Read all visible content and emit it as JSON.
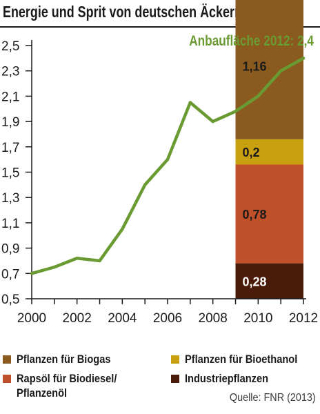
{
  "title": "Energie und Sprit von deutschen Äckern",
  "source": "Quelle: FNR (2013)",
  "colors": {
    "line": "#6a9a32",
    "biogas": "#8b5a1e",
    "bioethanol": "#c8a010",
    "biodiesel": "#c0502a",
    "industrie": "#4a1a0a",
    "text": "#1a1a1a"
  },
  "legend": [
    {
      "label": "Pflanzen für Biogas",
      "color_key": "biogas"
    },
    {
      "label": "Pflanzen für Bioethanol",
      "color_key": "bioethanol"
    },
    {
      "label": "Rapsöl für Biodiesel/\nPflanzenöl",
      "color_key": "biodiesel"
    },
    {
      "label": "Industriepflanzen",
      "color_key": "industrie"
    }
  ],
  "chart_data": {
    "type": "line",
    "title": "Energie und Sprit von deutschen Äckern",
    "xlabel": "",
    "ylabel": "",
    "x": [
      2000,
      2001,
      2002,
      2003,
      2004,
      2005,
      2006,
      2007,
      2008,
      2009,
      2010,
      2011,
      2012
    ],
    "series": [
      {
        "values": [
          0.7,
          0.75,
          0.82,
          0.8,
          1.05,
          1.4,
          1.6,
          2.05,
          1.9,
          1.98,
          2.1,
          2.3,
          2.4
        ]
      }
    ],
    "ylim": [
      0.5,
      2.5
    ],
    "xlim": [
      2000,
      2012
    ],
    "y_ticks": [
      "0,5",
      "0,7",
      "0,9",
      "1,1",
      "1,3",
      "1,5",
      "1,7",
      "1,9",
      "2,1",
      "2,3",
      "2,5"
    ],
    "x_ticks": [
      "2000",
      "2002",
      "2004",
      "2006",
      "2008",
      "2010",
      "2012"
    ],
    "annotation": "Anbaufläche 2012: 2,4",
    "stacked_bar": {
      "from_year": 2009,
      "to_year": 2012,
      "base": 0.5,
      "segments": [
        {
          "label": "0,28",
          "value": 0.28,
          "color_key": "industrie",
          "text_color": "#ffffff"
        },
        {
          "label": "0,78",
          "value": 0.78,
          "color_key": "biodiesel",
          "text_color": "#1a1a1a"
        },
        {
          "label": "0,2",
          "value": 0.2,
          "color_key": "bioethanol",
          "text_color": "#1a1a1a"
        },
        {
          "label": "1,16",
          "value": 1.16,
          "color_key": "biogas",
          "text_color": "#1a1a1a"
        }
      ]
    },
    "grid": false,
    "legend_position": "bottom"
  }
}
